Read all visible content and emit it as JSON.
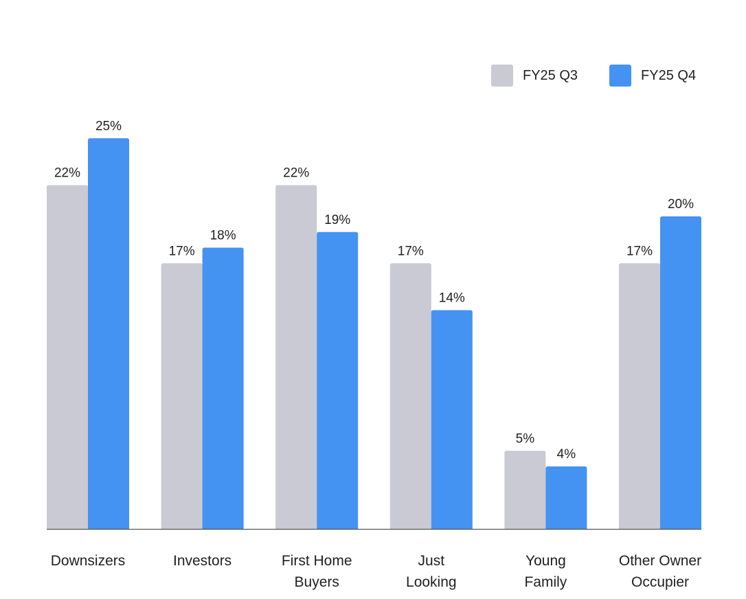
{
  "chart_data": {
    "type": "bar",
    "title": "",
    "xlabel": "",
    "ylabel": "",
    "categories": [
      [
        "Downsizers"
      ],
      [
        "Investors"
      ],
      [
        "First Home",
        "Buyers"
      ],
      [
        "Just",
        "Looking"
      ],
      [
        "Young",
        "Family"
      ],
      [
        "Other Owner",
        "Occupier"
      ]
    ],
    "series": [
      {
        "name": "FY25 Q3",
        "color": "#c9cad3",
        "values": [
          22,
          17,
          22,
          17,
          5,
          17
        ]
      },
      {
        "name": "FY25 Q4",
        "color": "#4493f2",
        "values": [
          25,
          18,
          19,
          14,
          4,
          20
        ]
      }
    ],
    "value_suffix": "%",
    "ylim": [
      0,
      25
    ],
    "grid": false,
    "legend_position": "top-right",
    "baseline_color": "#555555"
  }
}
